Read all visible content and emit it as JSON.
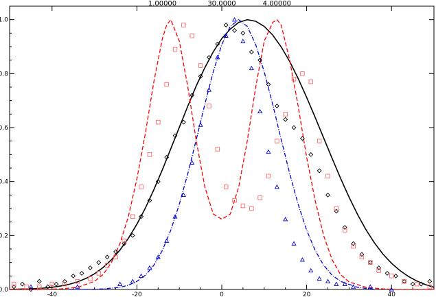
{
  "chart_data": {
    "type": "line",
    "title": "",
    "xlabel": "",
    "ylabel": "",
    "xlim": [
      -50,
      50
    ],
    "ylim": [
      0,
      1.05
    ],
    "grid": false,
    "x_ticks": [
      "-40",
      "-20",
      "0",
      "20",
      "40"
    ],
    "x_tick_values": [
      -40,
      -20,
      0,
      20,
      40
    ],
    "y_ticks": [
      "0.0",
      "0.2",
      "0.4",
      "0.6",
      "0.8",
      "1.0"
    ],
    "y_tick_values": [
      0,
      0.2,
      0.4,
      0.6,
      0.8,
      1.0
    ],
    "top_labels": [
      {
        "text": "1.00000",
        "x": -14
      },
      {
        "text": "30.0000",
        "x": 0
      },
      {
        "text": "4.00000",
        "x": 13
      }
    ],
    "series": [
      {
        "kind": "line",
        "style": "solid",
        "color": "#000000",
        "x": [
          -50,
          -48,
          -46,
          -44,
          -42,
          -40,
          -38,
          -36,
          -34,
          -32,
          -30,
          -28,
          -26,
          -24,
          -22,
          -20,
          -18,
          -16,
          -14,
          -12,
          -10,
          -8,
          -6,
          -4,
          -2,
          0,
          2,
          4,
          6,
          8,
          10,
          12,
          14,
          16,
          18,
          20,
          22,
          24,
          26,
          28,
          30,
          32,
          34,
          36,
          38,
          40,
          42,
          44,
          46,
          48,
          50
        ],
        "y": [
          0.0,
          0.001,
          0.002,
          0.003,
          0.005,
          0.008,
          0.013,
          0.019,
          0.028,
          0.041,
          0.058,
          0.081,
          0.11,
          0.146,
          0.19,
          0.242,
          0.302,
          0.37,
          0.444,
          0.522,
          0.601,
          0.68,
          0.755,
          0.822,
          0.881,
          0.93,
          0.965,
          0.99,
          1.0,
          0.994,
          0.975,
          0.943,
          0.899,
          0.845,
          0.782,
          0.712,
          0.638,
          0.562,
          0.486,
          0.412,
          0.342,
          0.278,
          0.221,
          0.172,
          0.131,
          0.097,
          0.07,
          0.048,
          0.031,
          0.018,
          0.008
        ]
      },
      {
        "kind": "line",
        "style": "dash-dot",
        "color": "#0000cc",
        "x": [
          -36,
          -32,
          -28,
          -24,
          -22,
          -20,
          -18,
          -16,
          -14,
          -12,
          -10,
          -8,
          -6,
          -4,
          -2,
          0,
          2,
          4,
          6,
          8,
          10,
          12,
          14,
          16,
          18,
          20,
          22,
          24,
          26,
          28,
          32,
          36
        ],
        "y": [
          0.0,
          0.0,
          0.002,
          0.008,
          0.016,
          0.03,
          0.053,
          0.09,
          0.145,
          0.22,
          0.316,
          0.43,
          0.556,
          0.686,
          0.807,
          0.908,
          0.975,
          1.0,
          0.975,
          0.908,
          0.807,
          0.686,
          0.556,
          0.43,
          0.316,
          0.22,
          0.145,
          0.09,
          0.053,
          0.03,
          0.008,
          0.0
        ]
      },
      {
        "kind": "line",
        "style": "dashed",
        "color": "#ff0000",
        "x": [
          -50,
          -46,
          -42,
          -38,
          -34,
          -30,
          -28,
          -26,
          -24,
          -22,
          -20,
          -18,
          -16,
          -14,
          -13,
          -12,
          -10,
          -8,
          -6,
          -4,
          -2,
          0,
          2,
          4,
          6,
          8,
          10,
          12,
          13,
          14,
          16,
          18,
          20,
          22,
          24,
          26,
          28,
          30,
          34,
          38,
          42,
          46,
          50
        ],
        "y": [
          0.0,
          0.0,
          0.0,
          0.002,
          0.008,
          0.03,
          0.055,
          0.1,
          0.17,
          0.27,
          0.41,
          0.58,
          0.77,
          0.93,
          0.98,
          1.0,
          0.92,
          0.75,
          0.55,
          0.38,
          0.28,
          0.26,
          0.28,
          0.38,
          0.55,
          0.75,
          0.92,
          0.99,
          1.0,
          0.98,
          0.85,
          0.68,
          0.49,
          0.33,
          0.2,
          0.11,
          0.055,
          0.028,
          0.008,
          0.002,
          0.0,
          0.0,
          0.0
        ]
      },
      {
        "kind": "scatter",
        "marker": "diamond",
        "color": "#000000",
        "x": [
          -49,
          -47,
          -45,
          -43,
          -41,
          -39,
          -37,
          -35,
          -33,
          -31,
          -29,
          -27,
          -25,
          -23,
          -21,
          -19,
          -17,
          -15,
          -13,
          -11,
          -9,
          -7,
          -5,
          -3,
          -1,
          1,
          3,
          5,
          7,
          9,
          11,
          13,
          15,
          17,
          19,
          21,
          23,
          25,
          27,
          29,
          31,
          33,
          35,
          37,
          39,
          41,
          43,
          45,
          47,
          49
        ],
        "y": [
          0.01,
          0.02,
          0.0,
          0.03,
          0.01,
          0.02,
          0.03,
          0.05,
          0.06,
          0.08,
          0.1,
          0.12,
          0.14,
          0.17,
          0.2,
          0.27,
          0.33,
          0.4,
          0.49,
          0.57,
          0.62,
          0.72,
          0.79,
          0.86,
          0.91,
          0.98,
          0.96,
          0.95,
          0.88,
          0.85,
          0.76,
          0.68,
          0.63,
          0.6,
          0.56,
          0.5,
          0.44,
          0.35,
          0.29,
          0.23,
          0.17,
          0.13,
          0.1,
          0.08,
          0.06,
          0.05,
          0.03,
          0.02,
          0.02,
          0.03
        ]
      },
      {
        "kind": "scatter",
        "marker": "triangle",
        "color": "#0000cc",
        "x": [
          -45,
          -34,
          -24,
          -21,
          -19,
          -17,
          -15,
          -13,
          -11,
          -9,
          -7,
          -5,
          -3,
          -1,
          1,
          3,
          5,
          7,
          9,
          11,
          13,
          15,
          17,
          19,
          21,
          23,
          25,
          27,
          29,
          31,
          35,
          40
        ],
        "y": [
          0.01,
          0.01,
          0.02,
          0.03,
          0.05,
          0.08,
          0.12,
          0.18,
          0.27,
          0.35,
          0.47,
          0.61,
          0.74,
          0.86,
          0.94,
          1.0,
          0.92,
          0.82,
          0.66,
          0.51,
          0.38,
          0.26,
          0.17,
          0.11,
          0.07,
          0.04,
          0.03,
          0.02,
          0.02,
          0.01,
          0.01,
          0.0
        ]
      },
      {
        "kind": "scatter",
        "marker": "square",
        "color": "#ff6666",
        "x": [
          -49,
          -46,
          -43,
          -40,
          -37,
          -34,
          -31,
          -29,
          -27,
          -25,
          -23,
          -21,
          -19,
          -17,
          -15,
          -13,
          -11,
          -9,
          -7,
          -5,
          -3,
          -1,
          1,
          3,
          5,
          7,
          9,
          11,
          13,
          15,
          17,
          19,
          21,
          23,
          25,
          27,
          29,
          31,
          33,
          35,
          37,
          40,
          43,
          46,
          49
        ],
        "y": [
          0.02,
          0.01,
          0.01,
          0.02,
          0.02,
          0.03,
          0.04,
          0.06,
          0.09,
          0.12,
          0.18,
          0.27,
          0.38,
          0.5,
          0.62,
          0.76,
          0.89,
          0.98,
          0.94,
          0.83,
          0.68,
          0.52,
          0.38,
          0.33,
          0.31,
          0.3,
          0.34,
          0.42,
          0.55,
          0.65,
          0.78,
          0.8,
          0.77,
          0.55,
          0.42,
          0.3,
          0.22,
          0.16,
          0.12,
          0.1,
          0.07,
          0.05,
          0.03,
          0.02,
          0.01
        ]
      }
    ]
  }
}
